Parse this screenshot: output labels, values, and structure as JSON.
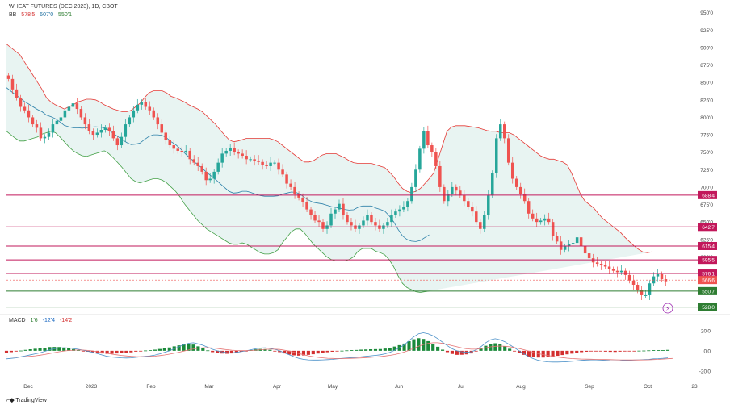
{
  "header": {
    "title": "WHEAT FUTURES (DEC 2023), 1D, CBOT",
    "bb_label": "BB",
    "bb_values": [
      "578'5",
      "607'0",
      "550'1"
    ],
    "macd_label": "MACD",
    "macd_values": [
      "1'6",
      "-12'4",
      "-14'2"
    ]
  },
  "branding": {
    "text": "TradingView"
  },
  "colors": {
    "up": "#26a69a",
    "down": "#ef5350",
    "bb_upper": "#e53935",
    "bb_basis": "#2a7fa8",
    "bb_lower": "#43a047",
    "bb_fill": "#e8f4f2",
    "resistance": "#c2185b",
    "support": "#2e7d32",
    "macd_line": "#4a90c8",
    "signal_line": "#e57373",
    "hist_pos": "#1b8a3a",
    "hist_neg": "#d32f2f"
  },
  "chart_data": {
    "type": "candlestick",
    "y_axis_ticks": [
      "950'0",
      "925'0",
      "900'0",
      "875'0",
      "850'0",
      "825'0",
      "800'0",
      "775'0",
      "750'0",
      "725'0",
      "700'0",
      "675'0",
      "650'0",
      "625'0",
      "600'0"
    ],
    "y_range": [
      538,
      952
    ],
    "x_axis_labels": [
      "Dec",
      "2023",
      "Feb",
      "Mar",
      "Apr",
      "May",
      "Jun",
      "Jul",
      "Aug",
      "Sep",
      "Oct",
      "23"
    ],
    "levels": [
      {
        "label": "688'4",
        "value": 688.5,
        "kind": "resistance"
      },
      {
        "label": "642'7",
        "value": 642.875,
        "kind": "resistance"
      },
      {
        "label": "615'4",
        "value": 615.5,
        "kind": "resistance"
      },
      {
        "label": "595'5",
        "value": 595.625,
        "kind": "resistance"
      },
      {
        "label": "576'1",
        "value": 576.125,
        "kind": "resistance"
      },
      {
        "label": "566'6",
        "value": 566.75,
        "kind": "price"
      },
      {
        "label": "550'7",
        "value": 550.875,
        "kind": "support"
      },
      {
        "label": "528'0",
        "value": 528.0,
        "kind": "support"
      }
    ],
    "closes": [
      855,
      840,
      828,
      815,
      810,
      800,
      790,
      785,
      770,
      772,
      778,
      790,
      795,
      800,
      810,
      815,
      820,
      812,
      800,
      790,
      780,
      775,
      778,
      782,
      785,
      780,
      770,
      760,
      772,
      790,
      800,
      810,
      818,
      822,
      815,
      810,
      800,
      790,
      778,
      768,
      760,
      755,
      752,
      750,
      752,
      740,
      735,
      730,
      722,
      710,
      712,
      722,
      735,
      748,
      752,
      756,
      750,
      748,
      745,
      740,
      740,
      738,
      736,
      732,
      730,
      735,
      735,
      725,
      718,
      705,
      700,
      690,
      685,
      678,
      668,
      660,
      652,
      650,
      640,
      645,
      662,
      668,
      676,
      660,
      650,
      645,
      640,
      645,
      652,
      660,
      650,
      645,
      640,
      645,
      650,
      660,
      665,
      668,
      672,
      680,
      700,
      725,
      755,
      780,
      760,
      750,
      730,
      700,
      680,
      690,
      700,
      695,
      688,
      680,
      672,
      665,
      650,
      640,
      660,
      688,
      720,
      770,
      790,
      770,
      735,
      712,
      700,
      690,
      680,
      662,
      655,
      650,
      652,
      655,
      650,
      630,
      622,
      610,
      615,
      618,
      620,
      628,
      615,
      605,
      598,
      592,
      590,
      588,
      586,
      582,
      580,
      578,
      580,
      574,
      566,
      560,
      552,
      545,
      545,
      562,
      572,
      575,
      568,
      565
    ],
    "bb_upper": [
      905,
      900,
      895,
      890,
      880,
      870,
      860,
      850,
      840,
      828,
      822,
      818,
      815,
      812,
      815,
      818,
      822,
      824,
      826,
      826,
      825,
      822,
      818,
      815,
      812,
      810,
      808,
      808,
      810,
      815,
      820,
      828,
      835,
      838,
      838,
      838,
      835,
      830,
      828,
      825,
      822,
      818,
      815,
      812,
      808,
      802,
      796,
      790,
      782,
      775,
      768,
      765,
      766,
      768,
      770,
      770,
      770,
      770,
      770,
      770,
      768,
      765,
      760,
      755,
      750,
      745,
      740,
      736,
      736,
      738,
      742,
      746,
      748,
      748,
      748,
      745,
      742,
      738,
      735,
      734,
      734,
      734,
      734,
      732,
      730,
      728,
      722,
      715,
      706,
      698,
      694,
      692,
      694,
      698,
      705,
      712,
      720,
      740,
      760,
      780,
      786,
      788,
      788,
      788,
      787,
      786,
      785,
      783,
      781,
      780,
      780,
      778,
      778,
      778,
      775,
      770,
      765,
      760,
      755,
      750,
      745,
      742,
      740,
      740,
      738,
      736,
      732,
      720,
      705,
      690,
      680,
      675,
      670,
      662,
      655,
      650,
      645,
      640,
      635,
      628,
      622,
      616,
      611,
      607,
      606,
      607
    ],
    "bb_lower": [
      780,
      775,
      770,
      766,
      766,
      768,
      770,
      772,
      776,
      778,
      780,
      778,
      772,
      765,
      758,
      752,
      748,
      745,
      744,
      746,
      748,
      750,
      752,
      748,
      742,
      735,
      728,
      720,
      712,
      708,
      706,
      708,
      710,
      712,
      712,
      710,
      706,
      700,
      694,
      686,
      676,
      668,
      660,
      652,
      646,
      640,
      636,
      632,
      628,
      624,
      620,
      618,
      618,
      620,
      618,
      614,
      610,
      606,
      604,
      604,
      606,
      610,
      620,
      628,
      636,
      640,
      640,
      634,
      626,
      618,
      612,
      606,
      600,
      596,
      594,
      594,
      594,
      596,
      600,
      608,
      612,
      612,
      612,
      608,
      606,
      603,
      596,
      586,
      573,
      562,
      556,
      553,
      550,
      549,
      550,
      551
    ],
    "macd": [
      -80,
      -75,
      -70,
      -60,
      -50,
      -40,
      -30,
      -20,
      -5,
      10,
      20,
      28,
      30,
      28,
      22,
      15,
      5,
      -5,
      -15,
      -28,
      -42,
      -55,
      -62,
      -66,
      -70,
      -72,
      -70,
      -65,
      -60,
      -55,
      -50,
      -42,
      -30,
      -15,
      0,
      20,
      40,
      60,
      75,
      80,
      70,
      55,
      35,
      15,
      0,
      -10,
      -18,
      -20,
      -15,
      -8,
      0,
      10,
      20,
      28,
      30,
      25,
      15,
      0,
      -20,
      -40,
      -60,
      -75,
      -85,
      -90,
      -92,
      -92,
      -90,
      -88,
      -85,
      -80,
      -76,
      -72,
      -68,
      -65,
      -60,
      -55,
      -50,
      -45,
      -40,
      -30,
      -15,
      5,
      30,
      60,
      100,
      140,
      170,
      180,
      170,
      150,
      120,
      85,
      50,
      20,
      0,
      -10,
      -15,
      -10,
      10,
      40,
      80,
      110,
      120,
      110,
      90,
      60,
      30,
      0,
      -30,
      -60,
      -80,
      -95,
      -105,
      -110,
      -112,
      -112,
      -110,
      -108,
      -105,
      -100,
      -95,
      -92,
      -90,
      -90,
      -92,
      -95,
      -98,
      -100,
      -98,
      -95,
      -95,
      -92,
      -90,
      -88,
      -85,
      -80,
      -78,
      -75,
      -70
    ],
    "signal": [
      -60,
      -62,
      -63,
      -62,
      -59,
      -55,
      -50,
      -44,
      -36,
      -27,
      -18,
      -9,
      -2,
      3,
      6,
      8,
      7,
      4,
      -1,
      -8,
      -16,
      -25,
      -33,
      -40,
      -46,
      -51,
      -55,
      -57,
      -58,
      -58,
      -56,
      -53,
      -48,
      -41,
      -33,
      -24,
      -14,
      -3,
      8,
      18,
      26,
      30,
      31,
      28,
      23,
      17,
      11,
      6,
      3,
      1,
      1,
      3,
      6,
      10,
      14,
      16,
      16,
      13,
      6,
      -3,
      -15,
      -27,
      -39,
      -50,
      -58,
      -65,
      -70,
      -74,
      -76,
      -77,
      -77,
      -76,
      -75,
      -73,
      -71,
      -68,
      -65,
      -61,
      -57,
      -52,
      -45,
      -37,
      -26,
      -12,
      5,
      25,
      45,
      62,
      74,
      80,
      80,
      74,
      63,
      51,
      40,
      29,
      20,
      16,
      16,
      21,
      30,
      39,
      45,
      47,
      45,
      40,
      32,
      22,
      10,
      -3,
      -16,
      -28,
      -38,
      -47,
      -55,
      -62,
      -68,
      -73,
      -77,
      -80,
      -82,
      -83,
      -84,
      -85,
      -86,
      -87,
      -88,
      -89,
      -90,
      -90,
      -91,
      -91,
      -91,
      -90,
      -89,
      -87,
      -85,
      -82,
      -79,
      -76
    ],
    "macd_range": [
      -250,
      280
    ],
    "macd_ticks": [
      "20'0",
      "0'0",
      "-20'0"
    ]
  }
}
